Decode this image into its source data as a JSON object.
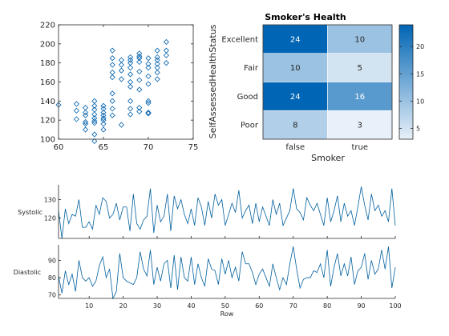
{
  "colors": {
    "marker": "#0060ad",
    "line": "#005f9e",
    "axis": "#262626",
    "colormap_low": "#e8f0f9",
    "colormap_high": "#0065b4"
  },
  "chart_data": [
    {
      "type": "scatter",
      "title": "",
      "xlabel": "",
      "ylabel": "",
      "xlim": [
        60,
        75
      ],
      "ylim": [
        100,
        220
      ],
      "xticks": [
        "60",
        "65",
        "70",
        "75"
      ],
      "yticks": [
        "100",
        "120",
        "140",
        "160",
        "180",
        "200",
        "220"
      ],
      "marker": "diamond-open",
      "grid": false,
      "x": [
        60,
        62,
        62,
        62,
        63,
        63,
        63,
        63,
        63,
        63,
        64,
        64,
        64,
        64,
        64,
        64,
        64,
        64,
        64,
        65,
        65,
        65,
        65,
        65,
        65,
        65,
        65,
        66,
        66,
        66,
        66,
        66,
        66,
        66,
        66,
        66,
        67,
        67,
        67,
        67,
        67,
        68,
        68,
        68,
        68,
        68,
        68,
        68,
        68,
        68,
        68,
        69,
        69,
        69,
        69,
        69,
        69,
        69,
        69,
        69,
        70,
        70,
        70,
        70,
        70,
        70,
        70,
        70,
        70,
        71,
        71,
        71,
        71,
        71,
        71,
        71,
        72,
        72,
        72,
        72
      ],
      "y": [
        136,
        137,
        130,
        121,
        133,
        128,
        125,
        118,
        116,
        110,
        140,
        135,
        131,
        126,
        122,
        119,
        117,
        105,
        98,
        135,
        132,
        128,
        125,
        122,
        120,
        116,
        110,
        193,
        185,
        178,
        170,
        165,
        148,
        140,
        132,
        125,
        183,
        178,
        172,
        163,
        115,
        186,
        183,
        180,
        175,
        168,
        160,
        155,
        140,
        132,
        126,
        190,
        187,
        185,
        181,
        171,
        162,
        152,
        133,
        129,
        185,
        179,
        175,
        166,
        158,
        140,
        138,
        128,
        127,
        193,
        186,
        183,
        179,
        175,
        170,
        163,
        202,
        193,
        188,
        180
      ]
    },
    {
      "type": "heatmap",
      "title": "Smoker's Health",
      "xlabel": "Smoker",
      "ylabel": "SelfAssessedHealthStatus",
      "x_categories": [
        "false",
        "true"
      ],
      "y_categories": [
        "Excellent",
        "Fair",
        "Good",
        "Poor"
      ],
      "values": [
        [
          24,
          10
        ],
        [
          10,
          5
        ],
        [
          24,
          16
        ],
        [
          8,
          3
        ]
      ],
      "colorbar": {
        "min": 3,
        "max": 24,
        "ticks": [
          "5",
          "10",
          "15",
          "20"
        ]
      }
    },
    {
      "type": "line",
      "title": "",
      "xlabel": "Row",
      "ylabels": [
        "Systolic",
        "Diastolic"
      ],
      "xlim": [
        1,
        100
      ],
      "xticks": [
        "10",
        "20",
        "30",
        "40",
        "50",
        "60",
        "70",
        "80",
        "90",
        "100"
      ],
      "series": [
        {
          "name": "Systolic",
          "ylim": [
            109,
            138
          ],
          "yticks": [
            "120",
            "130"
          ],
          "values": [
            124,
            109,
            125,
            117,
            122,
            121,
            130,
            115,
            115,
            118,
            114,
            127,
            122,
            131,
            129,
            120,
            122,
            128,
            119,
            126,
            126,
            113,
            133,
            117,
            114,
            119,
            121,
            136,
            112,
            127,
            118,
            121,
            133,
            113,
            132,
            125,
            130,
            122,
            117,
            125,
            116,
            131,
            126,
            116,
            129,
            120,
            133,
            127,
            130,
            116,
            122,
            128,
            123,
            135,
            120,
            124,
            127,
            117,
            128,
            118,
            126,
            121,
            116,
            130,
            122,
            128,
            116,
            120,
            124,
            136,
            125,
            123,
            119,
            131,
            127,
            124,
            128,
            122,
            116,
            131,
            118,
            124,
            132,
            118,
            128,
            121,
            124,
            116,
            126,
            137,
            127,
            119,
            133,
            124,
            127,
            121,
            124,
            118,
            136,
            116
          ]
        },
        {
          "name": "Diastolic",
          "ylim": [
            68,
            99
          ],
          "yticks": [
            "70",
            "80",
            "90"
          ],
          "values": [
            81,
            71,
            84,
            76,
            82,
            72,
            90,
            80,
            78,
            80,
            75,
            78,
            87,
            92,
            80,
            85,
            68,
            72,
            94,
            80,
            78,
            77,
            76,
            80,
            95,
            85,
            81,
            96,
            76,
            86,
            78,
            88,
            90,
            74,
            93,
            73,
            92,
            80,
            78,
            92,
            76,
            88,
            80,
            75,
            91,
            85,
            84,
            76,
            91,
            82,
            90,
            80,
            86,
            78,
            95,
            88,
            88,
            83,
            76,
            82,
            85,
            80,
            75,
            88,
            80,
            73,
            80,
            76,
            88,
            98,
            85,
            74,
            79,
            80,
            80,
            84,
            83,
            88,
            80,
            96,
            75,
            86,
            94,
            81,
            88,
            81,
            92,
            76,
            84,
            86,
            94,
            79,
            90,
            82,
            85,
            96,
            85,
            98,
            74,
            86
          ]
        }
      ]
    }
  ]
}
